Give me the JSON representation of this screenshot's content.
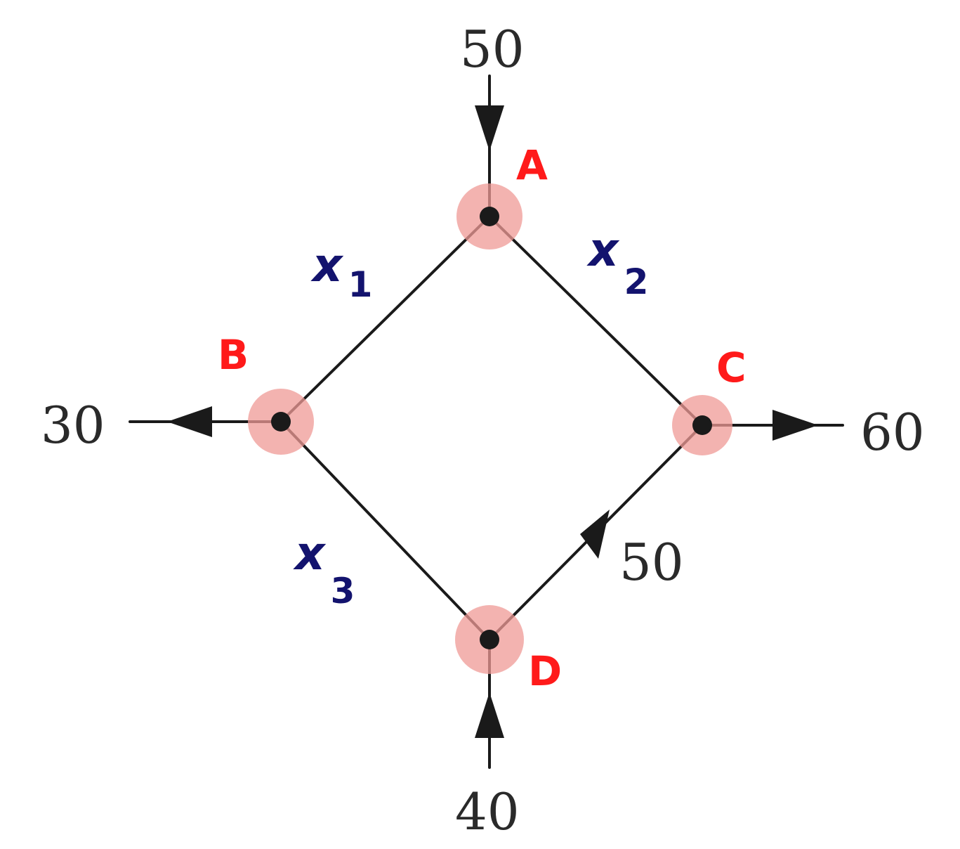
{
  "nodes": [
    {
      "id": "A",
      "label": "A",
      "color": "#ff1a1a"
    },
    {
      "id": "B",
      "label": "B",
      "color": "#ff1a1a"
    },
    {
      "id": "C",
      "label": "C",
      "color": "#ff1a1a"
    },
    {
      "id": "D",
      "label": "D",
      "color": "#ff1a1a"
    }
  ],
  "edges": [
    {
      "from": "A",
      "to": "B",
      "variable": "x",
      "subscript": "1"
    },
    {
      "from": "A",
      "to": "C",
      "variable": "x",
      "subscript": "2"
    },
    {
      "from": "B",
      "to": "D",
      "variable": "x",
      "subscript": "3"
    },
    {
      "from": "D",
      "to": "C",
      "flow": "50"
    }
  ],
  "external_flows": [
    {
      "node": "A",
      "direction": "in",
      "value": "50"
    },
    {
      "node": "B",
      "direction": "out",
      "value": "30"
    },
    {
      "node": "C",
      "direction": "out",
      "value": "60"
    },
    {
      "node": "D",
      "direction": "in",
      "value": "40"
    }
  ],
  "colors": {
    "node_label": "#ff1a1a",
    "variable_label": "#13136e",
    "node_halo": "#ef9a96",
    "lines": "#1a1a1a"
  }
}
